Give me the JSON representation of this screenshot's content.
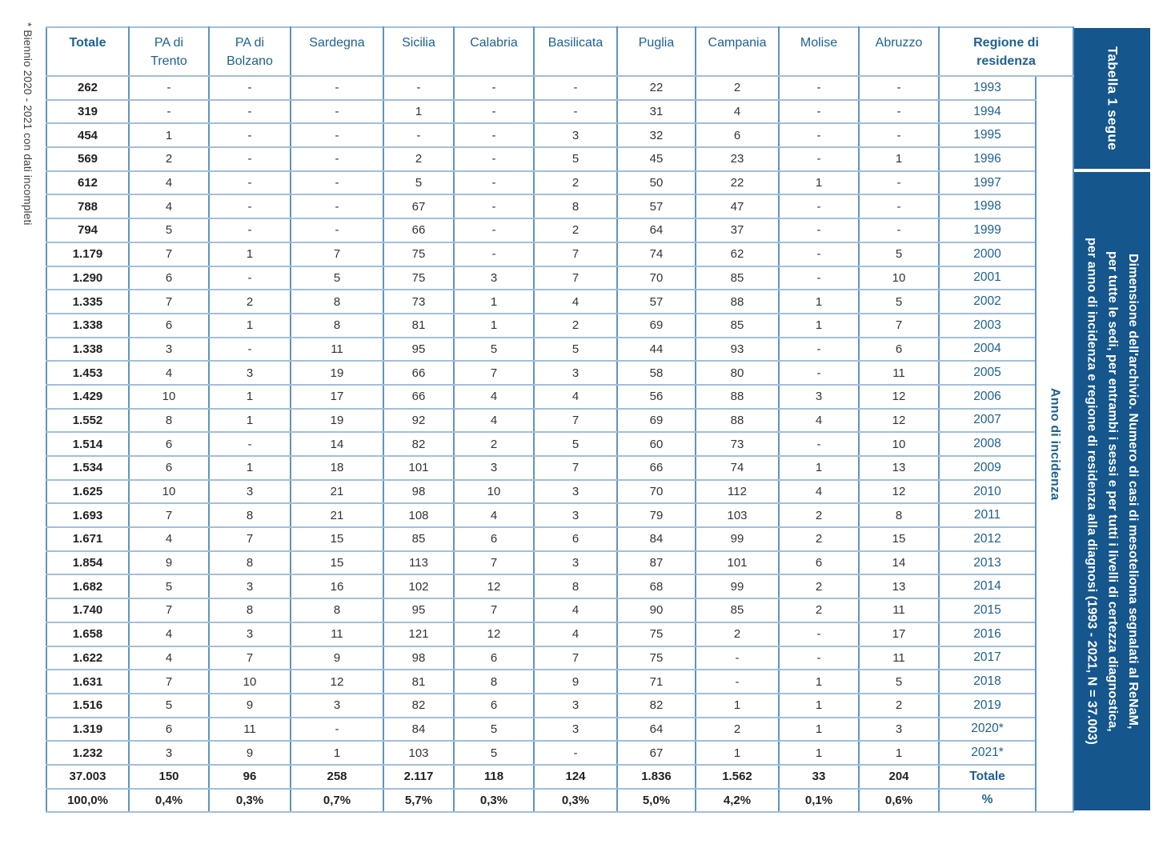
{
  "footnote": "* Biennio 2020 - 2021 con dati incompleti",
  "sidebar": {
    "tag": "Tabella 1 segue",
    "caption_lines": [
      "Dimensione dell'archivio. Numero di casi di mesotelioma segnalati al ReNaM,",
      "per tutte le sedi, per entrambi i sessi e per tutti i livelli di certezza diagnostica,",
      "per anno di incidenza e regione di residenza alla diagnosi (1993 - 2021, N = 37.003)"
    ]
  },
  "colors": {
    "sidebar_navy": "#15568c",
    "header_blue": "#1d6191",
    "grid_vertical": "#5e94c0",
    "grid_horizontal": "#a3bedb",
    "value_text": "#333333"
  },
  "table": {
    "row_axis_label": "Anno di incidenza",
    "columns": [
      {
        "label": "Totale",
        "bold": true
      },
      {
        "label": "PA di\nTrento",
        "bold": false
      },
      {
        "label": "PA di\nBolzano",
        "bold": false
      },
      {
        "label": "Sardegna",
        "bold": false
      },
      {
        "label": "Sicilia",
        "bold": false
      },
      {
        "label": "Calabria",
        "bold": false
      },
      {
        "label": "Basilicata",
        "bold": false
      },
      {
        "label": "Puglia",
        "bold": false
      },
      {
        "label": "Campania",
        "bold": false
      },
      {
        "label": "Molise",
        "bold": false
      },
      {
        "label": "Abruzzo",
        "bold": false
      },
      {
        "label": "Regione di\nresidenza",
        "bold": true
      }
    ],
    "rows": [
      [
        "262",
        "-",
        "-",
        "-",
        "-",
        "-",
        "-",
        "22",
        "2",
        "-",
        "-",
        "1993"
      ],
      [
        "319",
        "-",
        "-",
        "-",
        "1",
        "-",
        "-",
        "31",
        "4",
        "-",
        "-",
        "1994"
      ],
      [
        "454",
        "1",
        "-",
        "-",
        "-",
        "-",
        "3",
        "32",
        "6",
        "-",
        "-",
        "1995"
      ],
      [
        "569",
        "2",
        "-",
        "-",
        "2",
        "-",
        "5",
        "45",
        "23",
        "-",
        "1",
        "1996"
      ],
      [
        "612",
        "4",
        "-",
        "-",
        "5",
        "-",
        "2",
        "50",
        "22",
        "1",
        "-",
        "1997"
      ],
      [
        "788",
        "4",
        "-",
        "-",
        "67",
        "-",
        "8",
        "57",
        "47",
        "-",
        "-",
        "1998"
      ],
      [
        "794",
        "5",
        "-",
        "-",
        "66",
        "-",
        "2",
        "64",
        "37",
        "-",
        "-",
        "1999"
      ],
      [
        "1.179",
        "7",
        "1",
        "7",
        "75",
        "-",
        "7",
        "74",
        "62",
        "-",
        "5",
        "2000"
      ],
      [
        "1.290",
        "6",
        "-",
        "5",
        "75",
        "3",
        "7",
        "70",
        "85",
        "-",
        "10",
        "2001"
      ],
      [
        "1.335",
        "7",
        "2",
        "8",
        "73",
        "1",
        "4",
        "57",
        "88",
        "1",
        "5",
        "2002"
      ],
      [
        "1.338",
        "6",
        "1",
        "8",
        "81",
        "1",
        "2",
        "69",
        "85",
        "1",
        "7",
        "2003"
      ],
      [
        "1.338",
        "3",
        "-",
        "11",
        "95",
        "5",
        "5",
        "44",
        "93",
        "-",
        "6",
        "2004"
      ],
      [
        "1.453",
        "4",
        "3",
        "19",
        "66",
        "7",
        "3",
        "58",
        "80",
        "-",
        "11",
        "2005"
      ],
      [
        "1.429",
        "10",
        "1",
        "17",
        "66",
        "4",
        "4",
        "56",
        "88",
        "3",
        "12",
        "2006"
      ],
      [
        "1.552",
        "8",
        "1",
        "19",
        "92",
        "4",
        "7",
        "69",
        "88",
        "4",
        "12",
        "2007"
      ],
      [
        "1.514",
        "6",
        "-",
        "14",
        "82",
        "2",
        "5",
        "60",
        "73",
        "-",
        "10",
        "2008"
      ],
      [
        "1.534",
        "6",
        "1",
        "18",
        "101",
        "3",
        "7",
        "66",
        "74",
        "1",
        "13",
        "2009"
      ],
      [
        "1.625",
        "10",
        "3",
        "21",
        "98",
        "10",
        "3",
        "70",
        "112",
        "4",
        "12",
        "2010"
      ],
      [
        "1.693",
        "7",
        "8",
        "21",
        "108",
        "4",
        "3",
        "79",
        "103",
        "2",
        "8",
        "2011"
      ],
      [
        "1.671",
        "4",
        "7",
        "15",
        "85",
        "6",
        "6",
        "84",
        "99",
        "2",
        "15",
        "2012"
      ],
      [
        "1.854",
        "9",
        "8",
        "15",
        "113",
        "7",
        "3",
        "87",
        "101",
        "6",
        "14",
        "2013"
      ],
      [
        "1.682",
        "5",
        "3",
        "16",
        "102",
        "12",
        "8",
        "68",
        "99",
        "2",
        "13",
        "2014"
      ],
      [
        "1.740",
        "7",
        "8",
        "8",
        "95",
        "7",
        "4",
        "90",
        "85",
        "2",
        "11",
        "2015"
      ],
      [
        "1.658",
        "4",
        "3",
        "11",
        "121",
        "12",
        "4",
        "75",
        "2",
        "-",
        "17",
        "2016"
      ],
      [
        "1.622",
        "4",
        "7",
        "9",
        "98",
        "6",
        "7",
        "75",
        "-",
        "-",
        "11",
        "2017"
      ],
      [
        "1.631",
        "7",
        "10",
        "12",
        "81",
        "8",
        "9",
        "71",
        "-",
        "1",
        "5",
        "2018"
      ],
      [
        "1.516",
        "5",
        "9",
        "3",
        "82",
        "6",
        "3",
        "82",
        "1",
        "1",
        "2",
        "2019"
      ],
      [
        "1.319",
        "6",
        "11",
        "-",
        "84",
        "5",
        "3",
        "64",
        "2",
        "1",
        "3",
        "2020*"
      ],
      [
        "1.232",
        "3",
        "9",
        "1",
        "103",
        "5",
        "-",
        "67",
        "1",
        "1",
        "1",
        "2021*"
      ],
      [
        "37.003",
        "150",
        "96",
        "258",
        "2.117",
        "118",
        "124",
        "1.836",
        "1.562",
        "33",
        "204",
        "Totale"
      ],
      [
        "100,0%",
        "0,4%",
        "0,3%",
        "0,7%",
        "5,7%",
        "0,3%",
        "0,3%",
        "5,0%",
        "4,2%",
        "0,1%",
        "0,6%",
        "%"
      ]
    ]
  }
}
